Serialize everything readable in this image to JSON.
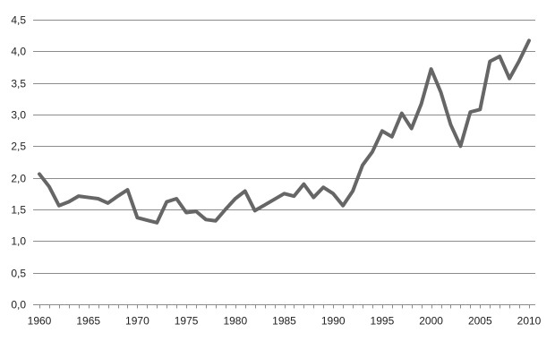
{
  "chart_data": {
    "type": "line",
    "title": "",
    "xlabel": "",
    "ylabel": "",
    "xlim": [
      1960,
      2010
    ],
    "ylim": [
      0,
      4.5
    ],
    "x_ticks": [
      1960,
      1965,
      1970,
      1975,
      1980,
      1985,
      1990,
      1995,
      2000,
      2005,
      2010
    ],
    "x_tick_labels": [
      "1960",
      "1965",
      "1970",
      "1975",
      "1980",
      "1985",
      "1990",
      "1995",
      "2000",
      "2005",
      "2010"
    ],
    "y_ticks": [
      0,
      0.5,
      1.0,
      1.5,
      2.0,
      2.5,
      3.0,
      3.5,
      4.0,
      4.5
    ],
    "y_tick_labels": [
      "0,0",
      "0,5",
      "1,0",
      "1,5",
      "2,0",
      "2,5",
      "3,0",
      "3,5",
      "4,0",
      "4,5"
    ],
    "grid": "horizontal",
    "legend": "none",
    "series": [
      {
        "color": "#666666",
        "x": [
          1960,
          1961,
          1962,
          1963,
          1964,
          1965,
          1966,
          1967,
          1968,
          1969,
          1970,
          1971,
          1972,
          1973,
          1974,
          1975,
          1976,
          1977,
          1978,
          1979,
          1980,
          1981,
          1982,
          1983,
          1984,
          1985,
          1986,
          1987,
          1988,
          1989,
          1990,
          1991,
          1992,
          1993,
          1994,
          1995,
          1996,
          1997,
          1998,
          1999,
          2000,
          2001,
          2002,
          2003,
          2004,
          2005,
          2006,
          2007,
          2008,
          2009,
          2010
        ],
        "values": [
          2.06,
          1.86,
          1.56,
          1.62,
          1.71,
          1.69,
          1.67,
          1.6,
          1.71,
          1.81,
          1.37,
          1.33,
          1.29,
          1.62,
          1.67,
          1.45,
          1.47,
          1.34,
          1.32,
          1.5,
          1.67,
          1.79,
          1.48,
          1.57,
          1.66,
          1.75,
          1.71,
          1.9,
          1.69,
          1.85,
          1.75,
          1.56,
          1.79,
          2.2,
          2.41,
          2.74,
          2.65,
          3.02,
          2.78,
          3.17,
          3.72,
          3.35,
          2.84,
          2.5,
          3.04,
          3.08,
          3.84,
          3.92,
          3.57,
          3.85,
          4.17
        ]
      }
    ]
  }
}
